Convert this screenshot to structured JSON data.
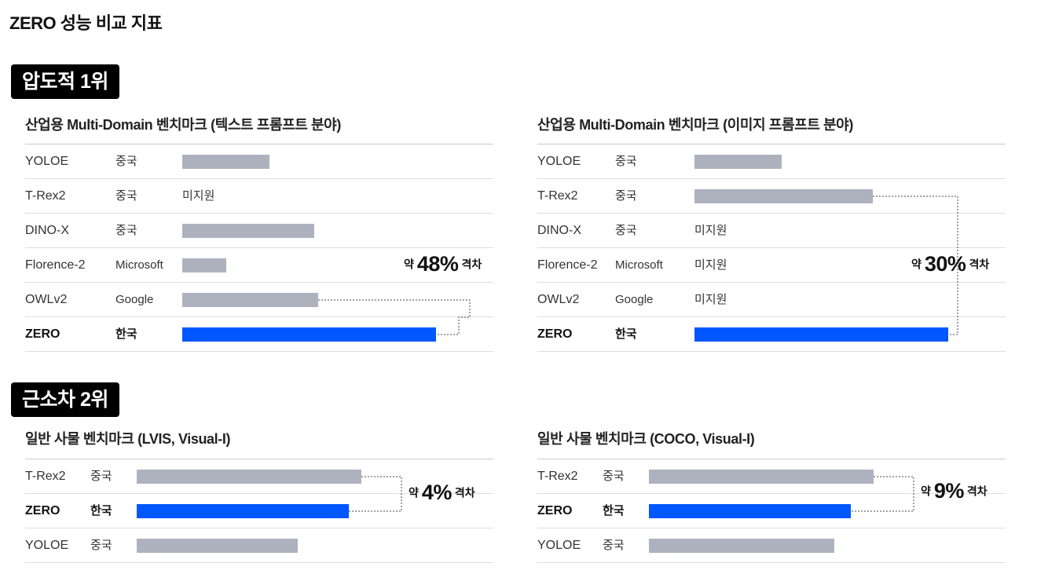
{
  "page_title": "ZERO 성능 비교 지표",
  "colors": {
    "highlight": "#0057ff",
    "other": "#adb2be"
  },
  "sections": [
    {
      "badge": "압도적 1위"
    },
    {
      "badge": "근소차 2위"
    }
  ],
  "chart_data": [
    {
      "type": "bar",
      "title": "산업용 Multi-Domain 벤치마크 (텍스트 프롬프트 분야)",
      "scale_max": 1.0,
      "rows": [
        {
          "model": "YOLOE",
          "country": "중국",
          "value": 0.344,
          "na": null,
          "highlight": false
        },
        {
          "model": "T-Rex2",
          "country": "중국",
          "value": null,
          "na": "미지원",
          "highlight": false
        },
        {
          "model": "DINO-X",
          "country": "중국",
          "value": 0.52,
          "na": null,
          "highlight": false
        },
        {
          "model": "Florence-2",
          "country": "Microsoft",
          "value": 0.172,
          "na": null,
          "highlight": false
        },
        {
          "model": "OWLv2",
          "country": "Google",
          "value": 0.537,
          "na": null,
          "highlight": false
        },
        {
          "model": "ZERO",
          "country": "한국",
          "value": 1.0,
          "na": null,
          "highlight": true
        }
      ],
      "comparison": {
        "from_row": 4,
        "to_row": 5,
        "prefix": "약",
        "value": "48%",
        "suffix": "격차"
      }
    },
    {
      "type": "bar",
      "title": "산업용 Multi-Domain 벤치마크 (이미지 프롬프트 분야)",
      "scale_max": 1.0,
      "rows": [
        {
          "model": "YOLOE",
          "country": "중국",
          "value": 0.345,
          "na": null,
          "highlight": false
        },
        {
          "model": "T-Rex2",
          "country": "중국",
          "value": 0.702,
          "na": null,
          "highlight": false
        },
        {
          "model": "DINO-X",
          "country": "중국",
          "value": null,
          "na": "미지원",
          "highlight": false
        },
        {
          "model": "Florence-2",
          "country": "Microsoft",
          "value": null,
          "na": "미지원",
          "highlight": false
        },
        {
          "model": "OWLv2",
          "country": "Google",
          "value": null,
          "na": "미지원",
          "highlight": false
        },
        {
          "model": "ZERO",
          "country": "한국",
          "value": 1.0,
          "na": null,
          "highlight": true
        }
      ],
      "comparison": {
        "from_row": 1,
        "to_row": 5,
        "prefix": "약",
        "value": "30%",
        "suffix": "격차"
      }
    },
    {
      "type": "bar",
      "title": "일반 사물 벤치마크 (LVIS, Visual-I)",
      "scale_max": 1.0,
      "rows": [
        {
          "model": "T-Rex2",
          "country": "중국",
          "value": 1.0,
          "na": null,
          "highlight": false
        },
        {
          "model": "ZERO",
          "country": "한국",
          "value": 0.944,
          "na": null,
          "highlight": true
        },
        {
          "model": "YOLOE",
          "country": "중국",
          "value": 0.717,
          "na": null,
          "highlight": false
        }
      ],
      "comparison": {
        "from_row": 0,
        "to_row": 1,
        "prefix": "약",
        "value": "4%",
        "suffix": "격차"
      }
    },
    {
      "type": "bar",
      "title": "일반 사물 벤치마크 (COCO, Visual-I)",
      "scale_max": 1.0,
      "rows": [
        {
          "model": "T-Rex2",
          "country": "중국",
          "value": 1.0,
          "na": null,
          "highlight": false
        },
        {
          "model": "ZERO",
          "country": "한국",
          "value": 0.897,
          "na": null,
          "highlight": true
        },
        {
          "model": "YOLOE",
          "country": "중국",
          "value": 0.826,
          "na": null,
          "highlight": false
        }
      ],
      "comparison": {
        "from_row": 0,
        "to_row": 1,
        "prefix": "약",
        "value": "9%",
        "suffix": "격차"
      }
    }
  ]
}
